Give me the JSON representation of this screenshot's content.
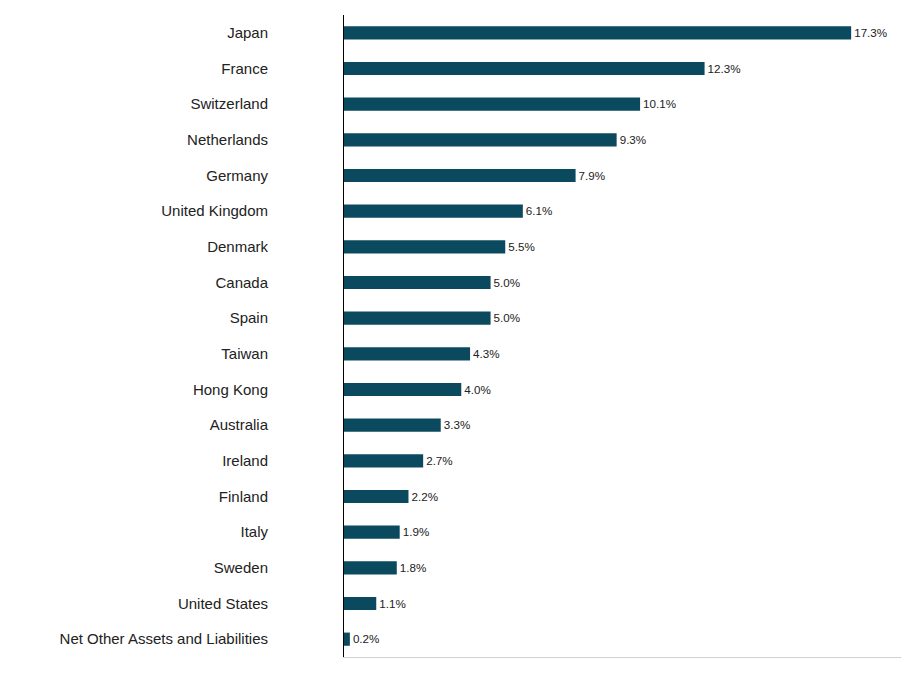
{
  "chart_data": {
    "type": "bar",
    "orientation": "horizontal",
    "categories": [
      "Japan",
      "France",
      "Switzerland",
      "Netherlands",
      "Germany",
      "United Kingdom",
      "Denmark",
      "Canada",
      "Spain",
      "Taiwan",
      "Hong Kong",
      "Australia",
      "Ireland",
      "Finland",
      "Italy",
      "Sweden",
      "United States",
      "Net Other Assets and Liabilities"
    ],
    "values": [
      17.3,
      12.3,
      10.1,
      9.3,
      7.9,
      6.1,
      5.5,
      5.0,
      5.0,
      4.3,
      4.0,
      3.3,
      2.7,
      2.2,
      1.9,
      1.8,
      1.1,
      0.2
    ],
    "value_labels": [
      "17.3%",
      "12.3%",
      "10.1%",
      "9.3%",
      "7.9%",
      "6.1%",
      "5.5%",
      "5.0%",
      "5.0%",
      "4.3%",
      "4.0%",
      "3.3%",
      "2.7%",
      "2.2%",
      "1.9%",
      "1.8%",
      "1.1%",
      "0.2%"
    ],
    "color": "#0b4a5e",
    "xlim": [
      0,
      19
    ],
    "xticks": [],
    "data_labels": true,
    "tick_labels": "y",
    "grid": false
  }
}
